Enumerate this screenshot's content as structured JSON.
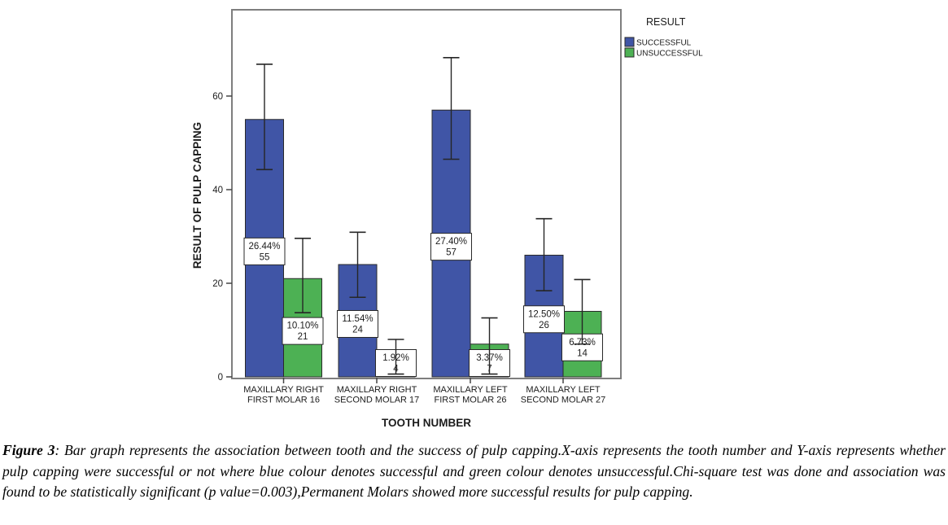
{
  "chart_data": {
    "type": "bar",
    "title": "",
    "xlabel": "TOOTH NUMBER",
    "ylabel": "RESULT OF PULP CAPPING",
    "ylim": [
      0,
      78
    ],
    "yticks": [
      0,
      20,
      40,
      60
    ],
    "grid": false,
    "legend": {
      "title": "RESULT",
      "position": "top-right"
    },
    "categories": [
      {
        "line1": "MAXILLARY RIGHT",
        "line2": "FIRST MOLAR 16"
      },
      {
        "line1": "MAXILLARY RIGHT",
        "line2": "SECOND MOLAR 17"
      },
      {
        "line1": "MAXILLARY LEFT",
        "line2": "FIRST MOLAR 26"
      },
      {
        "line1": "MAXILLARY LEFT",
        "line2": "SECOND MOLAR 27"
      }
    ],
    "series": [
      {
        "name": "SUCCESSFUL",
        "color": "#4055a6",
        "values": [
          55,
          24,
          57,
          26
        ],
        "percent_labels": [
          "26.44%",
          "11.54%",
          "27.40%",
          "12.50%"
        ],
        "count_labels": [
          "55",
          "24",
          "57",
          "26"
        ],
        "error_low": [
          44.3,
          17.0,
          46.5,
          18.4
        ],
        "error_high": [
          66.8,
          30.9,
          68.2,
          33.8
        ]
      },
      {
        "name": "UNSUCCESSFUL",
        "color": "#4db154",
        "values": [
          21,
          4,
          7,
          14
        ],
        "percent_labels": [
          "10.10%",
          "1.92%",
          "3.37%",
          "6.73%"
        ],
        "count_labels": [
          "21",
          "4",
          "7",
          "14"
        ],
        "error_low": [
          13.7,
          0.6,
          0.6,
          7.0
        ],
        "error_high": [
          29.6,
          8.0,
          12.6,
          20.8
        ]
      }
    ]
  },
  "colors": {
    "successful": "#4055a6",
    "unsuccessful": "#4db154",
    "frame": "#7e7e7e",
    "error_bar": "#262626"
  },
  "caption": {
    "prefix": "Figure 3",
    "body": ": Bar graph represents the association between tooth and the success of pulp capping.X-axis represents the tooth number and Y-axis represents whether pulp capping were successful or not  where blue colour denotes successful and green colour denotes unsuccessful.Chi-square test was done and association was found to be statistically significant (p value=0.003),Permanent Molars showed more successful results for pulp capping."
  }
}
